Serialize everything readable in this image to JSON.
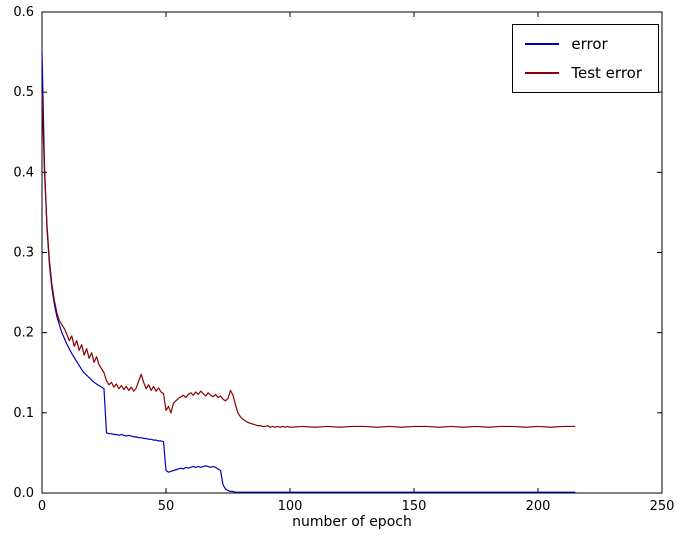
{
  "chart_data": {
    "type": "line",
    "title": "",
    "xlabel": "number of epoch",
    "ylabel": "",
    "xlim": [
      0,
      250
    ],
    "ylim": [
      0,
      0.6
    ],
    "grid": false,
    "legend_position": "upper right",
    "x_ticks": [
      0,
      50,
      100,
      150,
      200,
      250
    ],
    "x_tick_labels": [
      "0",
      "50",
      "100",
      "150",
      "200",
      "250"
    ],
    "y_ticks": [
      0.0,
      0.1,
      0.2,
      0.3,
      0.4,
      0.5,
      0.6
    ],
    "y_tick_labels": [
      "0.0",
      "0.1",
      "0.2",
      "0.3",
      "0.4",
      "0.5",
      "0.6"
    ],
    "x": [
      0,
      1,
      2,
      3,
      4,
      5,
      6,
      7,
      8,
      9,
      10,
      11,
      12,
      13,
      14,
      15,
      16,
      17,
      18,
      19,
      20,
      21,
      22,
      23,
      24,
      25,
      26,
      27,
      28,
      29,
      30,
      31,
      32,
      33,
      34,
      35,
      36,
      37,
      38,
      39,
      40,
      41,
      42,
      43,
      44,
      45,
      46,
      47,
      48,
      49,
      50,
      51,
      52,
      53,
      54,
      55,
      56,
      57,
      58,
      59,
      60,
      61,
      62,
      63,
      64,
      65,
      66,
      67,
      68,
      69,
      70,
      71,
      72,
      73,
      74,
      75,
      76,
      77,
      78,
      79,
      80,
      81,
      82,
      83,
      84,
      85,
      86,
      87,
      88,
      89,
      90,
      91,
      92,
      93,
      94,
      95,
      96,
      97,
      98,
      99,
      100,
      105,
      110,
      115,
      120,
      125,
      130,
      135,
      140,
      145,
      150,
      155,
      160,
      165,
      170,
      175,
      180,
      185,
      190,
      195,
      200,
      205,
      210,
      215
    ],
    "series": [
      {
        "name": "error",
        "color": "#0000bb",
        "values": [
          0.55,
          0.41,
          0.33,
          0.285,
          0.255,
          0.235,
          0.22,
          0.21,
          0.2,
          0.193,
          0.186,
          0.18,
          0.174,
          0.169,
          0.164,
          0.159,
          0.154,
          0.15,
          0.147,
          0.144,
          0.141,
          0.138,
          0.136,
          0.134,
          0.132,
          0.13,
          0.075,
          0.074,
          0.074,
          0.073,
          0.073,
          0.072,
          0.073,
          0.072,
          0.071,
          0.072,
          0.071,
          0.07,
          0.07,
          0.069,
          0.069,
          0.068,
          0.068,
          0.067,
          0.067,
          0.066,
          0.066,
          0.065,
          0.065,
          0.064,
          0.028,
          0.026,
          0.027,
          0.028,
          0.029,
          0.03,
          0.031,
          0.03,
          0.032,
          0.031,
          0.032,
          0.033,
          0.032,
          0.033,
          0.032,
          0.033,
          0.034,
          0.033,
          0.032,
          0.033,
          0.032,
          0.03,
          0.028,
          0.01,
          0.005,
          0.003,
          0.002,
          0.002,
          0.001,
          0.001,
          0.001,
          0.001,
          0.001,
          0.001,
          0.001,
          0.001,
          0.001,
          0.001,
          0.001,
          0.001,
          0.001,
          0.001,
          0.001,
          0.001,
          0.001,
          0.001,
          0.001,
          0.001,
          0.001,
          0.001,
          0.001,
          0.001,
          0.001,
          0.001,
          0.001,
          0.001,
          0.001,
          0.001,
          0.001,
          0.001,
          0.001,
          0.001,
          0.001,
          0.001,
          0.001,
          0.001,
          0.001,
          0.001,
          0.001,
          0.001,
          0.001,
          0.001,
          0.001,
          0.001
        ]
      },
      {
        "name": "Test error",
        "color": "#8b0000",
        "values": [
          0.5,
          0.4,
          0.335,
          0.29,
          0.26,
          0.24,
          0.225,
          0.215,
          0.21,
          0.205,
          0.198,
          0.19,
          0.196,
          0.183,
          0.19,
          0.178,
          0.185,
          0.172,
          0.18,
          0.168,
          0.175,
          0.163,
          0.17,
          0.16,
          0.155,
          0.15,
          0.14,
          0.135,
          0.138,
          0.132,
          0.136,
          0.13,
          0.134,
          0.129,
          0.133,
          0.128,
          0.132,
          0.127,
          0.131,
          0.14,
          0.148,
          0.138,
          0.13,
          0.135,
          0.128,
          0.133,
          0.127,
          0.131,
          0.126,
          0.124,
          0.103,
          0.108,
          0.1,
          0.112,
          0.115,
          0.118,
          0.12,
          0.122,
          0.119,
          0.123,
          0.125,
          0.122,
          0.126,
          0.123,
          0.127,
          0.124,
          0.121,
          0.125,
          0.122,
          0.12,
          0.123,
          0.119,
          0.121,
          0.117,
          0.115,
          0.118,
          0.128,
          0.122,
          0.11,
          0.1,
          0.095,
          0.092,
          0.09,
          0.088,
          0.087,
          0.086,
          0.085,
          0.084,
          0.084,
          0.083,
          0.083,
          0.084,
          0.082,
          0.083,
          0.082,
          0.083,
          0.082,
          0.083,
          0.082,
          0.083,
          0.082,
          0.083,
          0.082,
          0.083,
          0.082,
          0.083,
          0.083,
          0.082,
          0.083,
          0.082,
          0.083,
          0.083,
          0.082,
          0.083,
          0.082,
          0.083,
          0.082,
          0.083,
          0.083,
          0.082,
          0.083,
          0.082,
          0.083,
          0.083
        ]
      }
    ]
  }
}
